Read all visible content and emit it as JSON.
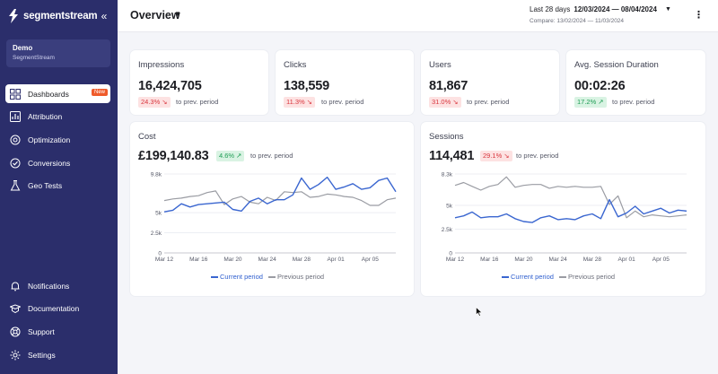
{
  "brand": {
    "name": "segmentstream"
  },
  "workspace": {
    "name": "Demo",
    "org": "SegmentStream"
  },
  "nav": {
    "top": [
      {
        "label": "Dashboards",
        "icon": "dashboard-icon",
        "badge": "New",
        "active": true
      },
      {
        "label": "Attribution",
        "icon": "attribution-icon"
      },
      {
        "label": "Optimization",
        "icon": "optimization-icon"
      },
      {
        "label": "Conversions",
        "icon": "conversions-icon"
      },
      {
        "label": "Geo Tests",
        "icon": "flask-icon"
      }
    ],
    "bottom": [
      {
        "label": "Notifications",
        "icon": "bell-icon"
      },
      {
        "label": "Documentation",
        "icon": "book-icon"
      },
      {
        "label": "Support",
        "icon": "support-icon"
      },
      {
        "label": "Settings",
        "icon": "gear-icon"
      }
    ]
  },
  "header": {
    "title": "Overview",
    "range_label": "Last 28 days",
    "range_value": "12/03/2024 — 08/04/2024",
    "compare": "Compare: 13/02/2024 — 11/03/2024"
  },
  "kpis": [
    {
      "label": "Impressions",
      "value": "16,424,705",
      "delta": "24.3% ↘",
      "trend": "neg",
      "cmp": "to prev. period"
    },
    {
      "label": "Clicks",
      "value": "138,559",
      "delta": "11.3% ↘",
      "trend": "neg",
      "cmp": "to prev. period"
    },
    {
      "label": "Users",
      "value": "81,867",
      "delta": "31.0% ↘",
      "trend": "neg",
      "cmp": "to prev. period"
    },
    {
      "label": "Avg. Session Duration",
      "value": "00:02:26",
      "delta": "17.2% ↗",
      "trend": "pos",
      "cmp": "to prev. period"
    }
  ],
  "colors": {
    "current": "#3a66d0",
    "previous": "#9a9ca3",
    "sidebar": "#2b2e6b"
  },
  "chart_data": [
    {
      "type": "line",
      "title": "Cost",
      "value": "£199,140.83",
      "delta": "4.6% ↗",
      "trend": "pos",
      "cmp": "to prev. period",
      "x": [
        "Mar 12",
        "Mar 13",
        "Mar 14",
        "Mar 15",
        "Mar 16",
        "Mar 17",
        "Mar 18",
        "Mar 19",
        "Mar 20",
        "Mar 21",
        "Mar 22",
        "Mar 23",
        "Mar 24",
        "Mar 25",
        "Mar 26",
        "Mar 27",
        "Mar 28",
        "Mar 29",
        "Mar 30",
        "Mar 31",
        "Apr 01",
        "Apr 02",
        "Apr 03",
        "Apr 04",
        "Apr 05",
        "Apr 06",
        "Apr 07",
        "Apr 08"
      ],
      "xticks": [
        "Mar 12",
        "Mar 16",
        "Mar 20",
        "Mar 24",
        "Mar 28",
        "Apr 01",
        "Apr 05"
      ],
      "yticks": [
        "0",
        "2.5k",
        "5k",
        "9.8k"
      ],
      "ytick_values": [
        0,
        2500,
        5000,
        9800
      ],
      "ylim": [
        0,
        9800
      ],
      "legend": [
        "Current period",
        "Previous period"
      ],
      "series": [
        {
          "name": "Current period",
          "values": [
            5100,
            5300,
            6100,
            5700,
            6000,
            6100,
            6200,
            6300,
            5400,
            5200,
            6400,
            6800,
            6100,
            6600,
            6600,
            7200,
            9300,
            7900,
            8500,
            9400,
            7900,
            8200,
            8600,
            7900,
            8100,
            9000,
            9300,
            7600
          ]
        },
        {
          "name": "Previous period",
          "values": [
            6500,
            6700,
            6800,
            7000,
            7100,
            7500,
            7700,
            6000,
            6700,
            7000,
            6300,
            6100,
            6900,
            6500,
            7600,
            7500,
            7600,
            6900,
            7000,
            7300,
            7200,
            7000,
            6900,
            6500,
            5900,
            5900,
            6600,
            6800
          ]
        }
      ]
    },
    {
      "type": "line",
      "title": "Sessions",
      "value": "114,481",
      "delta": "29.1% ↘",
      "trend": "neg",
      "cmp": "to prev. period",
      "x": [
        "Mar 12",
        "Mar 13",
        "Mar 14",
        "Mar 15",
        "Mar 16",
        "Mar 17",
        "Mar 18",
        "Mar 19",
        "Mar 20",
        "Mar 21",
        "Mar 22",
        "Mar 23",
        "Mar 24",
        "Mar 25",
        "Mar 26",
        "Mar 27",
        "Mar 28",
        "Mar 29",
        "Mar 30",
        "Mar 31",
        "Apr 01",
        "Apr 02",
        "Apr 03",
        "Apr 04",
        "Apr 05",
        "Apr 06",
        "Apr 07",
        "Apr 08"
      ],
      "xticks": [
        "Mar 12",
        "Mar 16",
        "Mar 20",
        "Mar 24",
        "Mar 28",
        "Apr 01",
        "Apr 05"
      ],
      "yticks": [
        "0",
        "2.5k",
        "5k",
        "8.3k"
      ],
      "ytick_values": [
        0,
        2500,
        5000,
        8300
      ],
      "ylim": [
        0,
        8300
      ],
      "legend": [
        "Current period",
        "Previous period"
      ],
      "series": [
        {
          "name": "Current period",
          "values": [
            3700,
            3900,
            4300,
            3700,
            3800,
            3800,
            4100,
            3600,
            3300,
            3200,
            3700,
            3900,
            3500,
            3600,
            3500,
            3900,
            4100,
            3600,
            5600,
            3800,
            4200,
            4900,
            4100,
            4400,
            4700,
            4200,
            4500,
            4400
          ]
        },
        {
          "name": "Previous period",
          "values": [
            7100,
            7400,
            7000,
            6600,
            7000,
            7200,
            8000,
            6900,
            7100,
            7200,
            7200,
            6800,
            7000,
            6900,
            7000,
            6900,
            6900,
            7000,
            5100,
            6000,
            3700,
            4400,
            3800,
            4000,
            3900,
            3800,
            3900,
            4000
          ]
        }
      ]
    }
  ]
}
